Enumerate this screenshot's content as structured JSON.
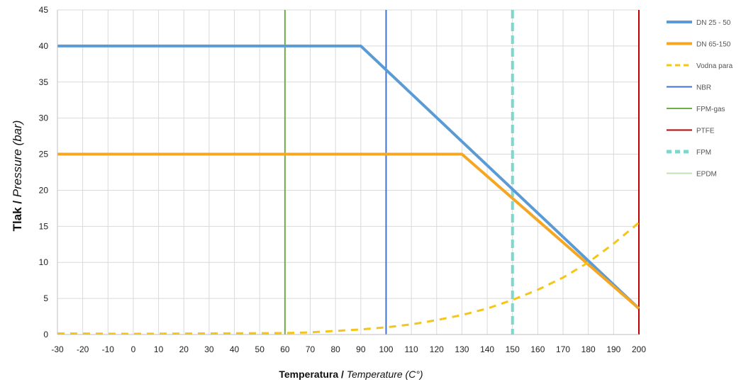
{
  "chart_data": {
    "type": "line",
    "xlabel": {
      "main": "Temperatura / ",
      "italic": "Temperature",
      "unit": " (C°)"
    },
    "ylabel": {
      "main": "Tlak / ",
      "italic": "Pressure (bar)"
    },
    "xlim": [
      -30,
      200
    ],
    "ylim": [
      0,
      45
    ],
    "x_ticks": [
      -30,
      -20,
      -10,
      0,
      10,
      20,
      30,
      40,
      50,
      60,
      70,
      80,
      90,
      100,
      110,
      120,
      130,
      140,
      150,
      160,
      170,
      180,
      190,
      200
    ],
    "y_ticks": [
      0,
      5,
      10,
      15,
      20,
      25,
      30,
      35,
      40,
      45
    ],
    "grid": true,
    "legend_position": "right",
    "series": [
      {
        "name": "DN 25 - 50",
        "kind": "line",
        "color": "#5b9bd5",
        "style": "solid",
        "x": [
          -30,
          90,
          200
        ],
        "y": [
          40,
          40,
          3.6
        ]
      },
      {
        "name": "DN 65-150",
        "kind": "line",
        "color": "#f5a623",
        "style": "solid",
        "x": [
          -30,
          130,
          200
        ],
        "y": [
          25,
          25,
          3.6
        ]
      },
      {
        "name": "Vodna para",
        "kind": "line",
        "color": "#f5c518",
        "style": "dashed",
        "x": [
          -30,
          0,
          30,
          60,
          70,
          80,
          90,
          100,
          110,
          120,
          130,
          140,
          150,
          160,
          170,
          180,
          190,
          200
        ],
        "y": [
          0.15,
          0.1,
          0.15,
          0.2,
          0.3,
          0.5,
          0.7,
          1.0,
          1.4,
          2.0,
          2.7,
          3.6,
          4.8,
          6.2,
          7.9,
          10.0,
          12.6,
          15.5
        ]
      },
      {
        "name": "NBR",
        "kind": "vline",
        "color": "#4472c4",
        "style": "solid",
        "x": 100
      },
      {
        "name": "FPM-gas",
        "kind": "vline",
        "color": "#70ad47",
        "style": "solid",
        "x": 60
      },
      {
        "name": "PTFE",
        "kind": "vline",
        "color": "#c00000",
        "style": "solid",
        "x": 200
      },
      {
        "name": "FPM",
        "kind": "vline",
        "color": "#7fd6cc",
        "style": "dashed",
        "x": 150
      },
      {
        "name": "EPDM",
        "kind": "vline",
        "color": "#c6e0b4",
        "style": "solid",
        "x": null
      }
    ]
  }
}
